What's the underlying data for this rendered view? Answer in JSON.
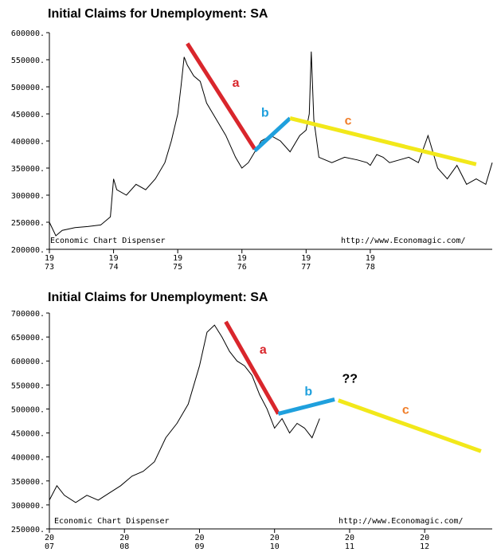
{
  "colors": {
    "wave_a": "#d9262c",
    "wave_b": "#1fa0dd",
    "wave_c": "#f2e81a",
    "label_c": "#f07f2b",
    "label_q": "#000000"
  },
  "chart_data": [
    {
      "type": "line",
      "title": "Initial Claims for Unemployment: SA",
      "credit_left": "Economic Chart Dispenser",
      "credit_right": "http://www.Economagic.com/",
      "ylim": [
        200000,
        600000
      ],
      "yticks": [
        200000,
        250000,
        300000,
        350000,
        400000,
        450000,
        500000,
        550000,
        600000
      ],
      "ytick_labels": [
        "200000.",
        "250000.",
        "300000.",
        "350000.",
        "400000.",
        "450000.",
        "500000.",
        "550000.",
        "600000."
      ],
      "xlim": [
        1973.0,
        1979.9
      ],
      "xticks": [
        {
          "x": 1973,
          "top": "19",
          "bottom": "73"
        },
        {
          "x": 1974,
          "top": "19",
          "bottom": "74"
        },
        {
          "x": 1975,
          "top": "19",
          "bottom": "75"
        },
        {
          "x": 1976,
          "top": "19",
          "bottom": "76"
        },
        {
          "x": 1977,
          "top": "19",
          "bottom": "77"
        },
        {
          "x": 1978,
          "top": "19",
          "bottom": "78"
        }
      ],
      "series": [
        {
          "x": [
            1973.0,
            1973.1,
            1973.2,
            1973.4,
            1973.6,
            1973.8,
            1973.95,
            1974.0,
            1974.05,
            1974.2,
            1974.35,
            1974.5,
            1974.65,
            1974.8,
            1974.9,
            1975.0,
            1975.05,
            1975.1,
            1975.15,
            1975.25,
            1975.35,
            1975.45,
            1975.6,
            1975.75,
            1975.9,
            1976.0,
            1976.1,
            1976.2,
            1976.3,
            1976.45,
            1976.6,
            1976.75,
            1976.9,
            1977.0,
            1977.05,
            1977.08,
            1977.12,
            1977.2,
            1977.4,
            1977.6,
            1977.8,
            1977.95,
            1978.0,
            1978.1,
            1978.2,
            1978.3,
            1978.45,
            1978.6,
            1978.75,
            1978.9,
            1979.05,
            1979.2,
            1979.35,
            1979.5,
            1979.65,
            1979.8,
            1979.9
          ],
          "y": [
            250000,
            225000,
            235000,
            240000,
            242000,
            245000,
            260000,
            330000,
            310000,
            300000,
            320000,
            310000,
            330000,
            360000,
            400000,
            450000,
            500000,
            555000,
            540000,
            520000,
            510000,
            470000,
            440000,
            410000,
            370000,
            350000,
            360000,
            380000,
            400000,
            410000,
            400000,
            380000,
            410000,
            420000,
            450000,
            565000,
            440000,
            370000,
            360000,
            370000,
            365000,
            360000,
            355000,
            375000,
            370000,
            360000,
            365000,
            370000,
            360000,
            410000,
            350000,
            330000,
            355000,
            320000,
            330000,
            320000,
            360000
          ]
        }
      ],
      "waves": [
        {
          "label": "a",
          "color": "wave_a",
          "x": [
            1975.15,
            1976.2
          ],
          "y": [
            580000,
            385000
          ],
          "label_x": 1975.85,
          "label_y": 500000
        },
        {
          "label": "b",
          "color": "wave_b",
          "x": [
            1976.2,
            1976.75
          ],
          "y": [
            382000,
            442000
          ],
          "label_x": 1976.3,
          "label_y": 445000
        },
        {
          "label": "c",
          "color": "wave_c",
          "x": [
            1976.75,
            1979.65
          ],
          "y": [
            442000,
            357000
          ],
          "label_x": 1977.6,
          "label_y": 430000
        }
      ]
    },
    {
      "type": "line",
      "title": "Initial Claims for Unemployment: SA",
      "credit_left": "Economic Chart Dispenser",
      "credit_right": "http://www.Economagic.com/",
      "ylim": [
        250000,
        700000
      ],
      "yticks": [
        250000,
        300000,
        350000,
        400000,
        450000,
        500000,
        550000,
        600000,
        650000,
        700000
      ],
      "ytick_labels": [
        "250000.",
        "300000.",
        "350000.",
        "400000.",
        "450000.",
        "500000.",
        "550000.",
        "600000.",
        "650000.",
        "700000."
      ],
      "xlim": [
        2007.0,
        2012.9
      ],
      "xticks": [
        {
          "x": 2007,
          "top": "20",
          "bottom": "07"
        },
        {
          "x": 2008,
          "top": "20",
          "bottom": "08"
        },
        {
          "x": 2009,
          "top": "20",
          "bottom": "09"
        },
        {
          "x": 2010,
          "top": "20",
          "bottom": "10"
        },
        {
          "x": 2011,
          "top": "20",
          "bottom": "11"
        },
        {
          "x": 2012,
          "top": "20",
          "bottom": "12"
        }
      ],
      "series": [
        {
          "x": [
            2007.0,
            2007.1,
            2007.2,
            2007.35,
            2007.5,
            2007.65,
            2007.8,
            2007.95,
            2008.1,
            2008.25,
            2008.4,
            2008.55,
            2008.7,
            2008.85,
            2009.0,
            2009.1,
            2009.2,
            2009.3,
            2009.4,
            2009.5,
            2009.6,
            2009.7,
            2009.8,
            2009.9,
            2010.0,
            2010.1,
            2010.2,
            2010.3,
            2010.4,
            2010.5,
            2010.6
          ],
          "y": [
            310000,
            340000,
            320000,
            305000,
            320000,
            310000,
            325000,
            340000,
            360000,
            370000,
            390000,
            440000,
            470000,
            510000,
            590000,
            660000,
            675000,
            650000,
            620000,
            600000,
            590000,
            570000,
            530000,
            500000,
            460000,
            480000,
            450000,
            470000,
            460000,
            440000,
            480000
          ]
        }
      ],
      "waves": [
        {
          "label": "a",
          "color": "wave_a",
          "x": [
            2009.35,
            2010.05
          ],
          "y": [
            682000,
            490000
          ],
          "label_x": 2009.8,
          "label_y": 615000
        },
        {
          "label": "b",
          "color": "wave_b",
          "x": [
            2010.05,
            2010.8
          ],
          "y": [
            490000,
            520000
          ],
          "label_x": 2010.4,
          "label_y": 528000
        },
        {
          "label": "c",
          "color": "wave_c",
          "x": [
            2010.85,
            2012.75
          ],
          "y": [
            518000,
            412000
          ],
          "label_x": 2011.7,
          "label_y": 490000
        },
        {
          "label": "??",
          "color": "label_q",
          "x": [],
          "y": [],
          "label_x": 2010.9,
          "label_y": 555000
        }
      ]
    }
  ]
}
